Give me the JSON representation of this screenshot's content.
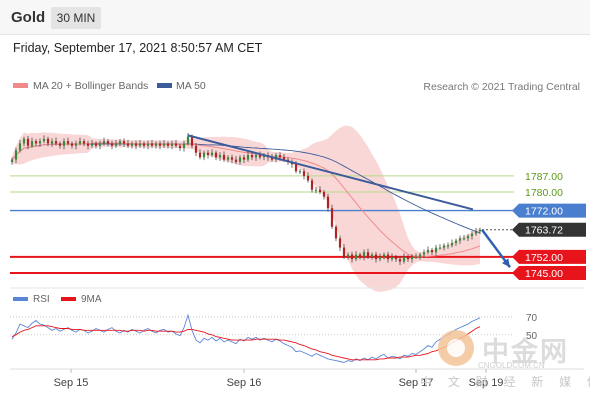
{
  "header": {
    "instrument": "Gold",
    "timeframe": "30 MIN",
    "datetime": "Friday, September 17, 2021 8:50:57 AM CET"
  },
  "legend": {
    "ma20_label": "MA 20 + Bollinger Bands",
    "ma50_label": "MA 50",
    "copyright": "Research © 2021 Trading Central",
    "rsi_label": "RSI",
    "rsi_ma_label": "9MA"
  },
  "watermark": {
    "text": "中金网",
    "url": "CNGOLDCOM.CN",
    "subtitle": "中 文 财 经 新 媒 体"
  },
  "colors": {
    "ma20": "#f08a8a",
    "bollinger_fill": "#f7c9c9",
    "ma50": "#3b5b9a",
    "resistance_green": "#b6d98a",
    "pivot_blue": "#4a7fd0",
    "support_red": "#e8141c",
    "arrow": "#2f5fb0",
    "rsi": "#5a86d6",
    "rsi_ma": "#e8141c",
    "candle_up": "#3a8a3a",
    "candle_down": "#b22222"
  },
  "chart_data": {
    "type": "candlestick",
    "instrument": "Gold",
    "timeframe": "30 MIN",
    "ylim": [
      1742,
      1812
    ],
    "x_ticks": [
      "Sep 15",
      "Sep 16",
      "Sep 17",
      "Sep 19"
    ],
    "price_levels": [
      {
        "label": "1787.00",
        "value": 1787.0,
        "kind": "resistance"
      },
      {
        "label": "1780.00",
        "value": 1780.0,
        "kind": "resistance"
      },
      {
        "label": "1772.00",
        "value": 1772.0,
        "kind": "pivot"
      },
      {
        "label": "1763.72",
        "value": 1763.72,
        "kind": "last_price"
      },
      {
        "label": "1752.00",
        "value": 1752.0,
        "kind": "support"
      },
      {
        "label": "1745.00",
        "value": 1745.0,
        "kind": "support"
      }
    ],
    "close": [
      1794,
      1798,
      1801,
      1803,
      1800,
      1802,
      1801,
      1802,
      1803,
      1801,
      1802,
      1801,
      1800,
      1802,
      1801,
      1800,
      1801,
      1802,
      1801,
      1800,
      1801,
      1800,
      1801,
      1802,
      1801,
      1800,
      1801,
      1802,
      1801,
      1800,
      1801,
      1800,
      1801,
      1800,
      1801,
      1800,
      1801,
      1800,
      1801,
      1800,
      1801,
      1800,
      1799,
      1801,
      1804,
      1800,
      1797,
      1795,
      1797,
      1796,
      1797,
      1795,
      1796,
      1794,
      1795,
      1794,
      1793,
      1795,
      1794,
      1796,
      1795,
      1796,
      1795,
      1796,
      1795,
      1794,
      1796,
      1795,
      1794,
      1793,
      1792,
      1789,
      1789,
      1787,
      1785,
      1781,
      1781,
      1780,
      1778,
      1773,
      1765,
      1760,
      1756,
      1752,
      1753,
      1751,
      1753,
      1752,
      1754,
      1752,
      1753,
      1751,
      1752,
      1753,
      1751,
      1752,
      1751,
      1750,
      1752,
      1751,
      1752,
      1752,
      1753,
      1754,
      1755,
      1754,
      1756,
      1756,
      1757,
      1757,
      1758,
      1759,
      1760,
      1760,
      1761,
      1762,
      1763,
      1763.72
    ],
    "rsi": {
      "labels": [
        "70",
        "50"
      ],
      "levels": [
        70,
        50
      ],
      "ylim": [
        15,
        80
      ],
      "rsi_values": [
        45,
        52,
        62,
        60,
        58,
        63,
        66,
        62,
        61,
        58,
        55,
        57,
        54,
        56,
        58,
        55,
        53,
        56,
        55,
        52,
        54,
        57,
        55,
        53,
        56,
        58,
        54,
        52,
        55,
        53,
        56,
        54,
        52,
        55,
        57,
        54,
        52,
        55,
        56,
        53,
        54,
        51,
        49,
        58,
        72,
        55,
        44,
        41,
        46,
        44,
        47,
        43,
        46,
        42,
        44,
        42,
        40,
        45,
        43,
        47,
        45,
        47,
        44,
        46,
        44,
        42,
        45,
        43,
        40,
        38,
        36,
        31,
        32,
        30,
        28,
        26,
        29,
        27,
        25,
        23,
        22,
        21,
        20,
        19,
        21,
        20,
        23,
        21,
        24,
        22,
        25,
        23,
        26,
        28,
        24,
        26,
        25,
        23,
        27,
        26,
        29,
        28,
        31,
        34,
        38,
        36,
        42,
        45,
        48,
        50,
        53,
        56,
        58,
        60,
        62,
        65,
        67,
        69
      ],
      "rsi_ma_values": [
        48,
        50,
        53,
        55,
        56,
        58,
        60,
        60,
        60,
        60,
        59,
        58,
        57,
        57,
        57,
        56,
        56,
        56,
        55,
        55,
        55,
        55,
        55,
        55,
        55,
        55,
        55,
        55,
        54,
        54,
        55,
        55,
        55,
        54,
        55,
        55,
        54,
        54,
        54,
        54,
        54,
        53,
        53,
        54,
        56,
        56,
        55,
        54,
        53,
        51,
        50,
        48,
        47,
        46,
        45,
        44,
        44,
        44,
        44,
        44,
        44,
        45,
        45,
        45,
        45,
        45,
        45,
        44,
        44,
        43,
        42,
        41,
        39,
        38,
        36,
        34,
        33,
        31,
        30,
        29,
        27,
        26,
        25,
        24,
        23,
        22,
        22,
        22,
        22,
        22,
        22,
        22,
        23,
        23,
        24,
        24,
        24,
        25,
        25,
        25,
        26,
        27,
        27,
        28,
        29,
        31,
        32,
        34,
        36,
        38,
        41,
        43,
        46,
        48,
        51,
        54,
        57,
        59
      ]
    }
  }
}
